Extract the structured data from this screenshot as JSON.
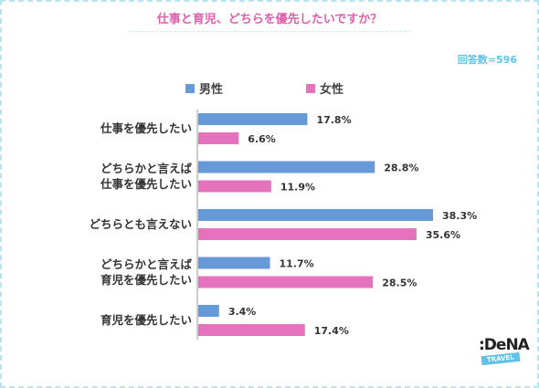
{
  "title": "仕事と育児、どちらを優先したいですか？",
  "respondents": "回答数=596",
  "logo": {
    "text": ":DeNA",
    "tag": "TRAVEL"
  },
  "colors": {
    "male": "#6699d8",
    "female": "#e472bd",
    "accent": "#e060ac"
  },
  "chart_data": {
    "type": "bar",
    "orientation": "horizontal",
    "title": "仕事と育児、どちらを優先したいですか？",
    "categories": [
      [
        "仕事を優先したい"
      ],
      [
        "どちらかと言えば",
        "仕事を優先したい"
      ],
      [
        "どちらとも言えない"
      ],
      [
        "どちらかと言えば",
        "育児を優先したい"
      ],
      [
        "育児を優先したい"
      ]
    ],
    "series": [
      {
        "name": "男性",
        "values": [
          17.8,
          28.8,
          38.3,
          11.7,
          3.4
        ],
        "labels": [
          "17.8%",
          "28.8%",
          "38.3%",
          "11.7%",
          "3.4%"
        ]
      },
      {
        "name": "女性",
        "values": [
          6.6,
          11.9,
          35.6,
          28.5,
          17.4
        ],
        "labels": [
          "6.6%",
          "11.9%",
          "35.6%",
          "28.5%",
          "17.4%"
        ]
      }
    ],
    "xlim": [
      0,
      38.3
    ],
    "legend": "top-left",
    "grid": false
  }
}
